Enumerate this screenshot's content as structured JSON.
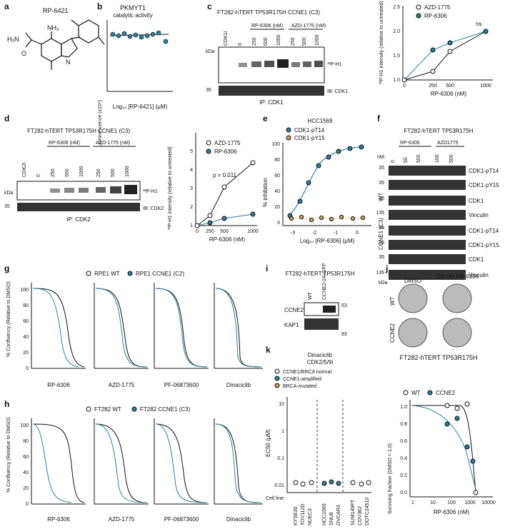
{
  "colors": {
    "teal": "#2e7f9a",
    "black": "#111111",
    "tan": "#c9a060",
    "red": "#d9534f"
  },
  "panels": [
    "a",
    "b",
    "c",
    "d",
    "e",
    "f",
    "g",
    "h",
    "i",
    "j",
    "k"
  ],
  "a": {
    "compound": "RP-6421",
    "nh2": "NH₂",
    "h2n": "H₂N",
    "o": "O",
    "n": "N"
  },
  "b": {
    "title": "PKMYT1",
    "subtitle": "catalytic activity",
    "ylabel": "Luminescence (x10⁶)",
    "xlabel": "Log₁₀ [RP-6421] (μM)"
  },
  "c": {
    "header": "FT282-hTERT TP53R175H CCNE1 (C3)",
    "lane1": "CDK1i",
    "lane2": "0",
    "grp1": "RP-6306 (nM)",
    "grp2": "AZD-1775 (nM)",
    "doses": [
      "250",
      "500",
      "1000",
      "250",
      "500",
      "1000"
    ],
    "kda": "kDa",
    "m35": "35",
    "p32": "³²P-H1",
    "ib": "IB: CDK1",
    "ip": "IP: CDK1"
  },
  "c2": {
    "legend": [
      "AZD-1775",
      "RP-6306"
    ],
    "ylabel": "³²P-H1 intensity (relative to untreated)",
    "xlabel": "RP-6306 (nM)",
    "ns": "ns",
    "xticks": [
      "0",
      "250",
      "500",
      "1000"
    ],
    "yticks": [
      "1.0",
      "1.5",
      "2.0",
      "2.5"
    ]
  },
  "d": {
    "header": "FT282-hTERT TP53R175H CCNE1 (C3)",
    "lane1": "CDK2i",
    "lane2": "0",
    "grp1": "RP-6306 (nM)",
    "grp2": "AZD-1775 (nM)",
    "doses": [
      "250",
      "500",
      "1000",
      "250",
      "500",
      "1000"
    ],
    "kda": "kDa",
    "m35": "35",
    "p32": "³²P-H1",
    "ib": "IB: CDK2",
    "ip": "IP: CDK2"
  },
  "d2": {
    "legend": [
      "AZD-1775",
      "RP-6306"
    ],
    "pval": "p = 0.011",
    "ylabel": "³²P-H1 intensity (relative to untreated)",
    "xlabel": "RP-6306 (nM)",
    "xticks": [
      "0",
      "250",
      "500",
      "1000"
    ],
    "yticks": [
      "1",
      "2",
      "3",
      "4",
      "5"
    ]
  },
  "e": {
    "title": "HCC1569",
    "legend": [
      "CDK1-pT14",
      "CDK1-pY15"
    ],
    "ylabel": "% inhibition",
    "xlabel": "Log₁₀ [RP-6306] (μM)",
    "yticks": [
      "100",
      "80",
      "60",
      "40",
      "20",
      "0"
    ],
    "xticks": [
      "-3",
      "-2",
      "-1",
      "0"
    ]
  },
  "f": {
    "header": "FT282-hTERT TP53R175H",
    "nm": "nM:",
    "grp1": "RP-6306",
    "grp2": "AZD1775",
    "doses": [
      "0",
      "50",
      "500",
      "100",
      "500"
    ],
    "wt": "WT",
    "ccne1": "CCNE1 (C3)",
    "kda": "kDa",
    "markers": [
      "35",
      "35",
      "35",
      "135",
      "35",
      "35",
      "35",
      "135"
    ],
    "bands": [
      "CDK1-pT14",
      "CDK1-pY15",
      "CDK1",
      "Vinculin",
      "CDK1-pT14",
      "CDK1-pY15",
      "CDK1",
      "Vinculin"
    ]
  },
  "g": {
    "legend": [
      "RPE1 WT",
      "RPE1 CCNE1 (C2)"
    ],
    "ylabel": "% Confluency (Relative to DMSO)",
    "drugs": [
      "RP-6306",
      "AZD-1775",
      "PF-06873600",
      "Dinaciclib"
    ],
    "yticks": [
      "100",
      "80",
      "60",
      "40",
      "20",
      "0"
    ],
    "xticks": [
      "1",
      "10",
      "100",
      "1000",
      "10000"
    ]
  },
  "h": {
    "legend": [
      "FT282 WT",
      "FT282 CCNE1 (C3)"
    ],
    "ylabel": "% Confluency (Relative to DMSO)",
    "drugs": [
      "RP-6306",
      "AZD-1775",
      "PF-06873600",
      "Dinaciclib"
    ],
    "yticks": [
      "100",
      "80",
      "60",
      "40",
      "20",
      "0"
    ],
    "xticks": [
      "1",
      "10",
      "100",
      "1000",
      "10000"
    ]
  },
  "i": {
    "header": "FT282-hTERT TP53R175H",
    "lanes": [
      "WT",
      "CCNE2-2A-GFP"
    ],
    "bands": [
      "CCNE2",
      "KAP1"
    ],
    "markers": [
      "53",
      "93"
    ]
  },
  "j": {
    "cond": [
      "DMSO",
      "333 nM RP-6306"
    ],
    "rows": [
      "WT",
      "CCNE2"
    ],
    "footer": "FT282-hTERT TP53R175H"
  },
  "k": {
    "title": "Dinaciclib",
    "subtitle": "CDK2/5/9i",
    "legend": [
      "CCNE1/BRCA normal",
      "CCNE1-amplified",
      "BRCA-mutated"
    ],
    "ylabel": "EC50 (μM)",
    "yticks": [
      "10",
      "1",
      "0.1",
      "0.01"
    ],
    "cellline": "Cell line:",
    "lines": [
      "KYSE30",
      "TOV112D",
      "NUEC3",
      "HCC1569",
      "SNU8",
      "OVCAR3",
      "SUM149PT",
      "COV362",
      "DOTC24510"
    ]
  },
  "k2": {
    "legend": [
      "WT",
      "CCNE2"
    ],
    "ylabel": "Surviving fraction (DMSO = 1.0)",
    "xlabel": "RP-6306 (nM)",
    "yticks": [
      "1.0",
      "0.8",
      "0.6",
      "0.4",
      "0.2",
      "0.0"
    ],
    "xticks": [
      "1",
      "10",
      "100",
      "1000",
      "10000"
    ]
  }
}
